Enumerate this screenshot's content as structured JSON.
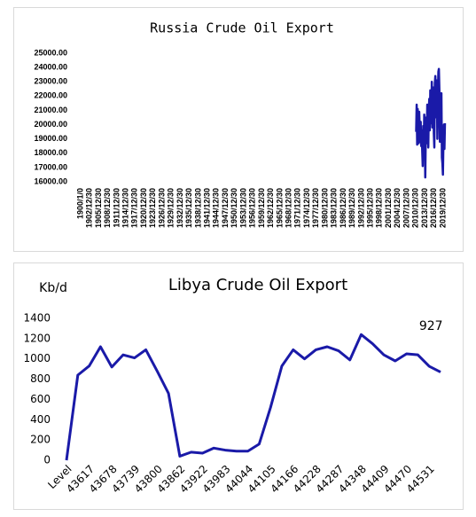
{
  "chart_data": [
    {
      "type": "line",
      "title": "Russia Crude Oil Export",
      "color": "#1a1aa8",
      "x": [
        40543,
        40604,
        40665,
        40726,
        40787,
        40848,
        40909,
        40970,
        41031,
        41092,
        41153,
        41214,
        41275,
        41336,
        41397,
        41458,
        41519,
        41580,
        41641,
        41702,
        41763,
        41824,
        41885,
        41946,
        42007,
        42068,
        42129,
        42190,
        42251,
        42312,
        42373,
        42434,
        42495,
        42556,
        42617,
        42678,
        42739,
        42800,
        42861,
        42922,
        42983,
        43044,
        43105,
        43166,
        43227,
        43288,
        43349,
        43410,
        43471,
        43532,
        43593,
        43654,
        43715,
        43776,
        43837,
        43898,
        43959,
        44020
      ],
      "values": [
        19500,
        21400,
        18600,
        21100,
        19700,
        18700,
        20900,
        19800,
        18800,
        20200,
        18500,
        19600,
        18200,
        17100,
        19900,
        18000,
        20700,
        19300,
        16300,
        19200,
        20500,
        18700,
        21400,
        20200,
        18400,
        21000,
        21800,
        19600,
        22400,
        21500,
        20100,
        23000,
        19800,
        21600,
        22600,
        19400,
        18400,
        22900,
        23400,
        21900,
        20500,
        23100,
        19000,
        21800,
        23700,
        23900,
        22400,
        18800,
        21300,
        20100,
        22200,
        17700,
        17300,
        16500,
        18900,
        20000,
        18300,
        20100
      ],
      "xlim": [
        0,
        44560
      ],
      "xticks": [
        {
          "value": 0,
          "label": "1900/1/0"
        },
        {
          "value": 1095,
          "label": "1902/12/30"
        },
        {
          "value": 2190,
          "label": "1905/12/30"
        },
        {
          "value": 3285,
          "label": "1908/12/30"
        },
        {
          "value": 4380,
          "label": "1911/12/30"
        },
        {
          "value": 5475,
          "label": "1914/12/30"
        },
        {
          "value": 6570,
          "label": "1917/12/30"
        },
        {
          "value": 7665,
          "label": "1920/12/30"
        },
        {
          "value": 8760,
          "label": "1923/12/30"
        },
        {
          "value": 9855,
          "label": "1926/12/30"
        },
        {
          "value": 10950,
          "label": "1929/12/30"
        },
        {
          "value": 12045,
          "label": "1932/12/30"
        },
        {
          "value": 13140,
          "label": "1935/12/30"
        },
        {
          "value": 14235,
          "label": "1938/12/30"
        },
        {
          "value": 15330,
          "label": "1941/12/30"
        },
        {
          "value": 16425,
          "label": "1944/12/30"
        },
        {
          "value": 17520,
          "label": "1947/12/30"
        },
        {
          "value": 18615,
          "label": "1950/12/30"
        },
        {
          "value": 19710,
          "label": "1953/12/30"
        },
        {
          "value": 20805,
          "label": "1956/12/30"
        },
        {
          "value": 21900,
          "label": "1959/12/30"
        },
        {
          "value": 22995,
          "label": "1962/12/30"
        },
        {
          "value": 24090,
          "label": "1965/12/30"
        },
        {
          "value": 25185,
          "label": "1968/12/30"
        },
        {
          "value": 26280,
          "label": "1971/12/30"
        },
        {
          "value": 27375,
          "label": "1974/12/30"
        },
        {
          "value": 28470,
          "label": "1977/12/30"
        },
        {
          "value": 29565,
          "label": "1980/12/30"
        },
        {
          "value": 30660,
          "label": "1983/12/30"
        },
        {
          "value": 31755,
          "label": "1986/12/30"
        },
        {
          "value": 32850,
          "label": "1989/12/30"
        },
        {
          "value": 33945,
          "label": "1992/12/30"
        },
        {
          "value": 35040,
          "label": "1995/12/30"
        },
        {
          "value": 36135,
          "label": "1998/12/30"
        },
        {
          "value": 37230,
          "label": "2001/12/30"
        },
        {
          "value": 38325,
          "label": "2004/12/30"
        },
        {
          "value": 39420,
          "label": "2007/12/30"
        },
        {
          "value": 40515,
          "label": "2010/12/30"
        },
        {
          "value": 41610,
          "label": "2013/12/30"
        },
        {
          "value": 42705,
          "label": "2016/12/30"
        },
        {
          "value": 43800,
          "label": "2019/12/30"
        }
      ],
      "ylim": [
        16000,
        25000
      ],
      "yticks": [
        {
          "value": 16000,
          "label": "16000.00"
        },
        {
          "value": 17000,
          "label": "17000.00"
        },
        {
          "value": 18000,
          "label": "18000.00"
        },
        {
          "value": 19000,
          "label": "19000.00"
        },
        {
          "value": 20000,
          "label": "20000.00"
        },
        {
          "value": 21000,
          "label": "21000.00"
        },
        {
          "value": 22000,
          "label": "22000.00"
        },
        {
          "value": 23000,
          "label": "23000.00"
        },
        {
          "value": 24000,
          "label": "24000.00"
        },
        {
          "value": 25000,
          "label": "25000.00"
        }
      ]
    },
    {
      "type": "line",
      "title": "Libya Crude Oil Export",
      "ylabel": "Kb/d",
      "color": "#1a1aa8",
      "categories": [
        "Level",
        null,
        "43617",
        null,
        "43678",
        null,
        "43739",
        null,
        "43800",
        null,
        "43862",
        null,
        "43922",
        null,
        "43983",
        null,
        "44044",
        null,
        "44105",
        null,
        "44166",
        null,
        "44228",
        null,
        "44287",
        null,
        "44348",
        null,
        "44409",
        null,
        "44470",
        null,
        "44531",
        null
      ],
      "values": [
        0,
        840,
        930,
        1120,
        920,
        1040,
        1010,
        1090,
        880,
        660,
        40,
        80,
        70,
        120,
        100,
        90,
        90,
        160,
        520,
        930,
        1090,
        1000,
        1090,
        1120,
        1080,
        990,
        1240,
        1150,
        1040,
        980,
        1050,
        1040,
        927,
        870
      ],
      "value_labels": [
        null,
        null,
        null,
        null,
        null,
        null,
        null,
        null,
        null,
        null,
        null,
        null,
        null,
        null,
        null,
        null,
        null,
        null,
        null,
        null,
        null,
        null,
        null,
        null,
        null,
        null,
        null,
        null,
        null,
        null,
        null,
        null,
        "927",
        null
      ],
      "ylim": [
        0,
        1400
      ],
      "yticks": [
        0,
        200,
        400,
        600,
        800,
        1000,
        1200,
        1400
      ]
    }
  ]
}
